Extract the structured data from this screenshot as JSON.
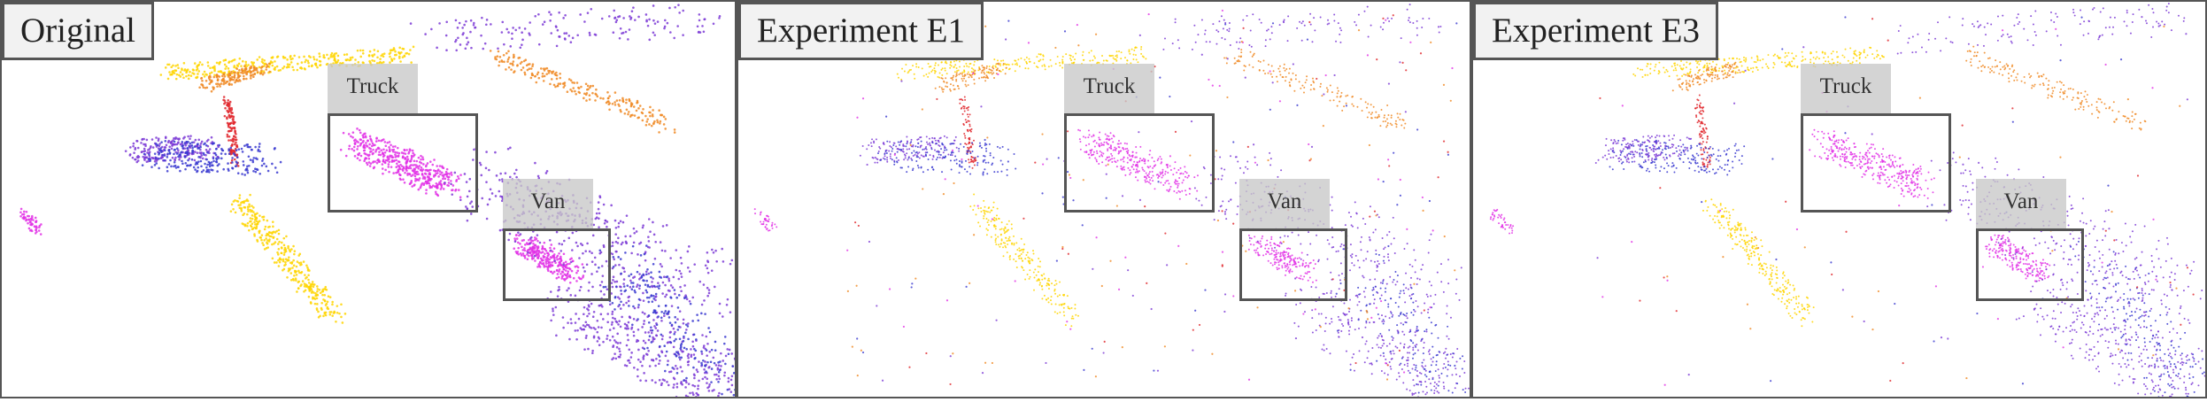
{
  "panels": [
    {
      "title": "Original",
      "labels": {
        "truck": "Truck",
        "van": "Van"
      },
      "style": "dense"
    },
    {
      "title": "Experiment E1",
      "labels": {
        "truck": "Truck",
        "van": "Van"
      },
      "style": "noisy"
    },
    {
      "title": "Experiment E3",
      "labels": {
        "truck": "Truck",
        "van": "Van"
      },
      "style": "medium"
    }
  ],
  "colors": {
    "frame": "#555555",
    "title_bg": "#f2f2f2",
    "label_bg": "#c8c8c8",
    "cloud_yellow": "#ffd500",
    "cloud_orange": "#f08a24",
    "cloud_red": "#e0262b",
    "cloud_magenta": "#e233e6",
    "cloud_purple": "#7d3bd6",
    "cloud_blue": "#3a3ad0"
  }
}
